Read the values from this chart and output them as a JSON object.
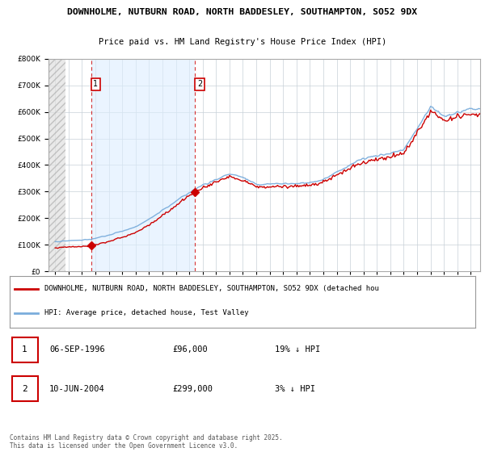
{
  "title_line1": "DOWNHOLME, NUTBURN ROAD, NORTH BADDESLEY, SOUTHAMPTON, SO52 9DX",
  "title_line2": "Price paid vs. HM Land Registry's House Price Index (HPI)",
  "legend_line1": "DOWNHOLME, NUTBURN ROAD, NORTH BADDESLEY, SOUTHAMPTON, SO52 9DX (detached hou",
  "legend_line2": "HPI: Average price, detached house, Test Valley",
  "footer": "Contains HM Land Registry data © Crown copyright and database right 2025.\nThis data is licensed under the Open Government Licence v3.0.",
  "sale1_date": "06-SEP-1996",
  "sale1_price_str": "£96,000",
  "sale1_hpi_str": "19% ↓ HPI",
  "sale1_year": 1996.68,
  "sale1_value": 96000,
  "sale2_date": "10-JUN-2004",
  "sale2_price_str": "£299,000",
  "sale2_hpi_str": "3% ↓ HPI",
  "sale2_year": 2004.44,
  "sale2_value": 299000,
  "price_color": "#cc0000",
  "hpi_color": "#7aaddc",
  "hpi_band_color": "#ddeeff",
  "background_color": "#f0f5fa",
  "plot_bg_color": "#ffffff",
  "grid_color": "#c8d0d8",
  "ylim": [
    0,
    800000
  ],
  "xlim_start": 1993.5,
  "xlim_end": 2025.7,
  "hatch_end": 1994.75
}
